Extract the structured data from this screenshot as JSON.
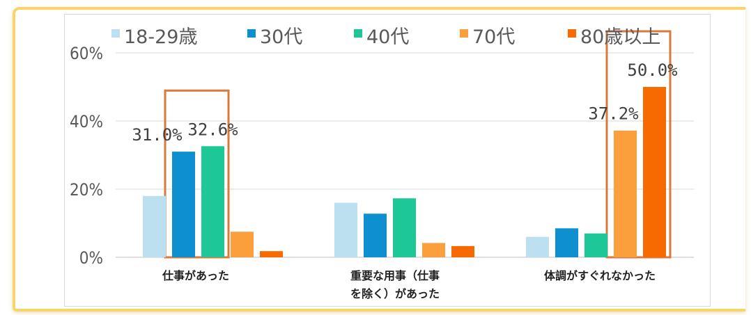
{
  "chart_data": {
    "type": "bar",
    "categories": [
      [
        "仕事があった"
      ],
      [
        "重要な用事（仕事",
        "を除く）があった"
      ],
      [
        "体調がすぐれなかった"
      ]
    ],
    "series": [
      {
        "name": "18-29歳",
        "color": "#bde0f0",
        "values": [
          18.0,
          16.0,
          6.0
        ]
      },
      {
        "name": "30代",
        "color": "#0d8fd0",
        "values": [
          31.0,
          12.8,
          8.5
        ]
      },
      {
        "name": "40代",
        "color": "#1ec796",
        "values": [
          32.6,
          17.3,
          7.0
        ]
      },
      {
        "name": "70代",
        "color": "#fb9e3c",
        "values": [
          7.5,
          4.2,
          37.2
        ]
      },
      {
        "name": "80歳以上",
        "color": "#f66a00",
        "values": [
          1.8,
          3.3,
          50.0
        ]
      }
    ],
    "data_labels": [
      {
        "series": 1,
        "category": 0,
        "text": "31.0%"
      },
      {
        "series": 2,
        "category": 0,
        "text": "32.6%"
      },
      {
        "series": 3,
        "category": 2,
        "text": "37.2%"
      },
      {
        "series": 4,
        "category": 2,
        "text": "50.0%"
      }
    ],
    "highlight_boxes": [
      {
        "category": 0,
        "series_from": 1,
        "series_to": 2,
        "color": "#d9793a"
      },
      {
        "category": 2,
        "series_from": 3,
        "series_to": 4,
        "color": "#d9793a"
      }
    ],
    "yticks": [
      "0%",
      "20%",
      "40%",
      "60%"
    ],
    "ylim": [
      0,
      60
    ],
    "title": "",
    "xlabel": "",
    "ylabel": "",
    "grid": true,
    "legend": "top"
  }
}
